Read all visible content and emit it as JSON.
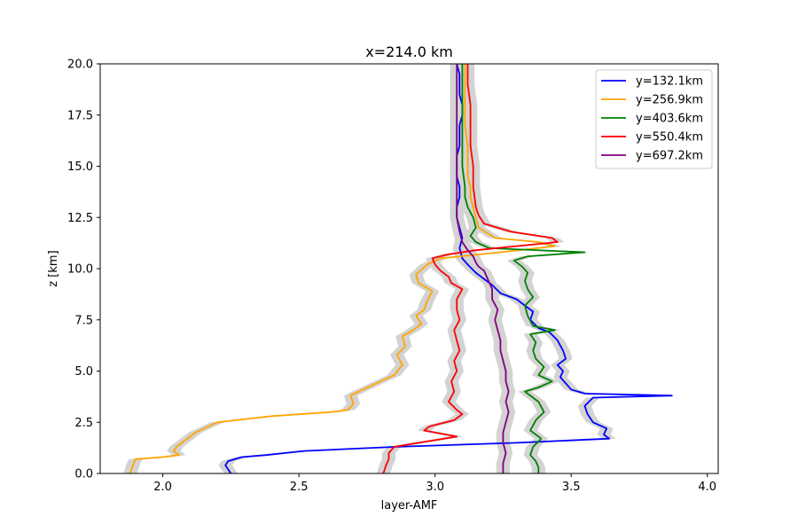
{
  "chart_data": {
    "type": "line",
    "title": "x=214.0 km",
    "xlabel": "layer-AMF",
    "ylabel": "z [km]",
    "xlim": [
      1.77,
      4.04
    ],
    "ylim": [
      0,
      20
    ],
    "xticks": [
      2.0,
      2.5,
      3.0,
      3.5,
      4.0
    ],
    "xtick_labels": [
      "2.0",
      "2.5",
      "3.0",
      "3.5",
      "4.0"
    ],
    "yticks": [
      0,
      2.5,
      5,
      7.5,
      10,
      12.5,
      15,
      17.5,
      20
    ],
    "ytick_labels": [
      "0.0",
      "2.5",
      "5.0",
      "7.5",
      "10.0",
      "12.5",
      "15.0",
      "17.5",
      "20.0"
    ],
    "grid": false,
    "legend_position": "top-right",
    "uncertainty_band_color": "#d3d3d3",
    "series": [
      {
        "name": "y=132.1km",
        "color": "#0000ff",
        "x": [
          2.25,
          2.23,
          2.24,
          2.29,
          2.38,
          2.45,
          2.52,
          2.85,
          3.3,
          3.64,
          3.62,
          3.63,
          3.58,
          3.56,
          3.55,
          3.58,
          3.87,
          3.55,
          3.5,
          3.48,
          3.46,
          3.47,
          3.45,
          3.48,
          3.47,
          3.45,
          3.42,
          3.38,
          3.35,
          3.36,
          3.33,
          3.3,
          3.24,
          3.21,
          3.18,
          3.15,
          3.12,
          3.1,
          3.09,
          3.1,
          3.09,
          3.08,
          3.08,
          3.09,
          3.09,
          3.08,
          3.08,
          3.08,
          3.09,
          3.09,
          3.09,
          3.1,
          3.1,
          3.09,
          3.09,
          3.08
        ],
        "y": [
          0.0,
          0.4,
          0.6,
          0.8,
          0.9,
          1.0,
          1.1,
          1.3,
          1.5,
          1.7,
          1.9,
          2.2,
          2.5,
          2.9,
          3.3,
          3.7,
          3.8,
          3.9,
          4.1,
          4.4,
          4.7,
          5.0,
          5.3,
          5.6,
          6.0,
          6.5,
          6.9,
          7.1,
          7.5,
          7.9,
          8.2,
          8.5,
          8.8,
          9.2,
          9.5,
          9.8,
          10.2,
          10.5,
          11.0,
          11.5,
          12.0,
          12.5,
          13.0,
          13.5,
          14.0,
          14.5,
          15.0,
          15.5,
          16.0,
          16.5,
          17.0,
          17.5,
          18.0,
          18.5,
          19.5,
          20.0
        ]
      },
      {
        "name": "y=256.9km",
        "color": "#ffa500",
        "x": [
          1.88,
          1.89,
          1.9,
          2.0,
          2.06,
          2.04,
          2.05,
          2.08,
          2.12,
          2.2,
          2.4,
          2.62,
          2.68,
          2.7,
          2.69,
          2.72,
          2.8,
          2.85,
          2.88,
          2.86,
          2.89,
          2.88,
          2.92,
          2.95,
          2.93,
          2.96,
          2.97,
          2.99,
          2.94,
          2.93,
          2.97,
          3.02,
          3.24,
          3.44,
          3.38,
          3.22,
          3.16,
          3.15,
          3.14,
          3.13,
          3.13,
          3.12,
          3.12,
          3.12,
          3.12,
          3.11,
          3.11,
          3.11,
          3.11,
          3.11
        ],
        "y": [
          0.0,
          0.4,
          0.7,
          0.8,
          0.9,
          1.1,
          1.3,
          1.6,
          2.0,
          2.5,
          2.8,
          3.0,
          3.1,
          3.4,
          3.8,
          4.0,
          4.5,
          4.8,
          5.3,
          5.8,
          6.2,
          6.7,
          7.0,
          7.3,
          7.7,
          8.0,
          8.4,
          8.9,
          9.3,
          9.7,
          10.2,
          10.5,
          10.8,
          11.1,
          11.3,
          11.5,
          12.0,
          12.5,
          13.0,
          13.5,
          14.0,
          14.5,
          15.0,
          15.5,
          16.0,
          17.0,
          18.0,
          19.0,
          19.5,
          20.0
        ]
      },
      {
        "name": "y=403.6km",
        "color": "#008000",
        "x": [
          3.38,
          3.38,
          3.37,
          3.35,
          3.36,
          3.39,
          3.35,
          3.37,
          3.4,
          3.38,
          3.33,
          3.38,
          3.43,
          3.38,
          3.4,
          3.37,
          3.36,
          3.37,
          3.35,
          3.44,
          3.36,
          3.34,
          3.33,
          3.36,
          3.34,
          3.33,
          3.34,
          3.32,
          3.29,
          3.34,
          3.55,
          3.2,
          3.15,
          3.13,
          3.15,
          3.14,
          3.12,
          3.11,
          3.11,
          3.1,
          3.1,
          3.1,
          3.1,
          3.1,
          3.1,
          3.1
        ],
        "y": [
          0.0,
          0.3,
          0.6,
          0.9,
          1.3,
          1.7,
          2.1,
          2.6,
          3.0,
          3.5,
          4.0,
          4.2,
          4.5,
          4.8,
          5.2,
          5.6,
          6.0,
          6.4,
          6.8,
          7.0,
          7.2,
          7.7,
          8.2,
          8.6,
          9.0,
          9.4,
          9.8,
          10.1,
          10.4,
          10.6,
          10.8,
          11.0,
          11.3,
          11.6,
          12.0,
          12.5,
          13.0,
          13.5,
          14.0,
          15.0,
          16.0,
          17.0,
          18.0,
          19.0,
          19.5,
          20.0
        ]
      },
      {
        "name": "y=550.4km",
        "color": "#ff0000",
        "x": [
          2.81,
          2.82,
          2.83,
          2.83,
          2.85,
          2.94,
          3.08,
          2.96,
          2.98,
          3.07,
          3.1,
          3.08,
          3.05,
          3.07,
          3.06,
          3.08,
          3.07,
          3.09,
          3.08,
          3.07,
          3.09,
          3.08,
          3.08,
          3.1,
          3.06,
          3.05,
          3.02,
          3.0,
          2.99,
          3.05,
          3.15,
          3.45,
          3.43,
          3.28,
          3.18,
          3.16,
          3.15,
          3.14,
          3.14,
          3.13,
          3.13,
          3.13,
          3.12,
          3.12,
          3.12
        ],
        "y": [
          0.0,
          0.4,
          0.7,
          1.0,
          1.3,
          1.5,
          1.8,
          2.1,
          2.3,
          2.6,
          2.9,
          3.1,
          3.5,
          4.0,
          4.5,
          5.0,
          5.5,
          6.0,
          6.5,
          7.0,
          7.5,
          8.0,
          8.5,
          9.0,
          9.3,
          9.6,
          9.9,
          10.2,
          10.5,
          10.7,
          10.9,
          11.3,
          11.5,
          11.8,
          12.2,
          12.6,
          13.0,
          14.0,
          15.0,
          16.0,
          17.0,
          18.0,
          19.0,
          19.5,
          20.0
        ]
      },
      {
        "name": "y=697.2km",
        "color": "#800080",
        "x": [
          3.25,
          3.25,
          3.26,
          3.25,
          3.25,
          3.26,
          3.27,
          3.26,
          3.27,
          3.26,
          3.26,
          3.25,
          3.24,
          3.24,
          3.23,
          3.22,
          3.23,
          3.21,
          3.21,
          3.2,
          3.19,
          3.18,
          3.16,
          3.15,
          3.14,
          3.12,
          3.1,
          3.09,
          3.08,
          3.08,
          3.08,
          3.08,
          3.08,
          3.08,
          3.08,
          3.08,
          3.08,
          3.08
        ],
        "y": [
          0.0,
          0.5,
          1.0,
          1.5,
          2.0,
          2.5,
          3.0,
          3.5,
          4.0,
          4.5,
          5.0,
          5.5,
          6.0,
          6.5,
          7.0,
          7.5,
          8.0,
          8.5,
          9.0,
          9.3,
          9.6,
          9.9,
          10.1,
          10.3,
          10.6,
          10.9,
          11.3,
          11.8,
          12.5,
          13.0,
          14.0,
          15.0,
          16.0,
          17.0,
          18.0,
          19.0,
          19.5,
          20.0
        ]
      }
    ]
  }
}
